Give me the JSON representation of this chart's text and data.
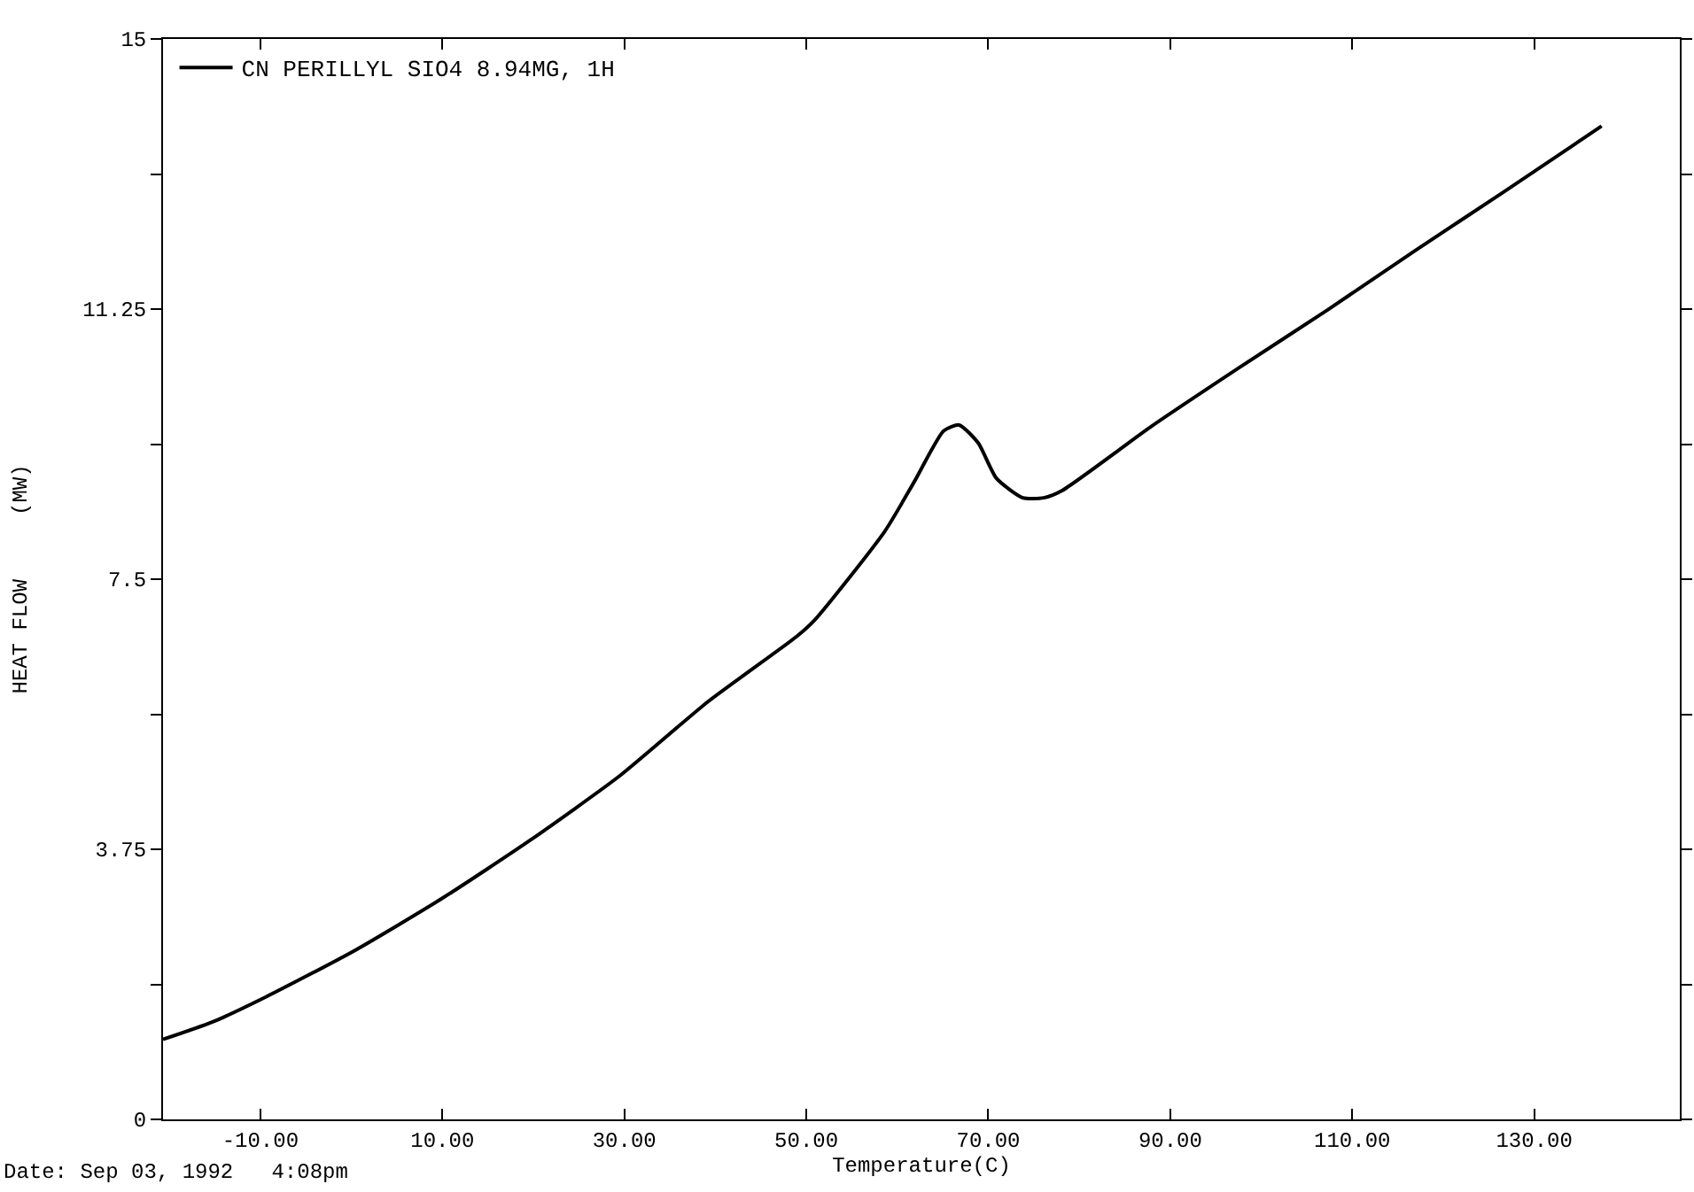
{
  "chart_data": {
    "type": "line",
    "xlabel": "Temperature(C)",
    "ylabel": "HEAT FLOW     (MW)",
    "x": [
      -20.7,
      -15.3,
      -9.4,
      0.3,
      10,
      19.7,
      29.5,
      39.2,
      48.9,
      50.9,
      58.6,
      61.9,
      65.1,
      66.8,
      68.9,
      70.9,
      73.8,
      76.1,
      78.1,
      87.8,
      97.5,
      107.3,
      117,
      126.7,
      137.4
    ],
    "series": [
      {
        "name": "CN PERILLYL SIO4 8.94MG, 1H",
        "color": "#000000",
        "values": [
          1.11,
          1.35,
          1.7,
          2.34,
          3.07,
          3.88,
          4.77,
          5.8,
          6.7,
          6.93,
          8.16,
          8.86,
          9.56,
          9.64,
          9.39,
          8.9,
          8.63,
          8.63,
          8.73,
          9.61,
          10.43,
          11.24,
          12.07,
          12.88,
          13.79
        ]
      }
    ],
    "xlim": [
      -20.7,
      146
    ],
    "xticks": [
      {
        "value": -10,
        "label": "-10.00"
      },
      {
        "value": 10,
        "label": "10.00"
      },
      {
        "value": 30,
        "label": "30.00"
      },
      {
        "value": 50,
        "label": "50.00"
      },
      {
        "value": 70,
        "label": "70.00"
      },
      {
        "value": 90,
        "label": "90.00"
      },
      {
        "value": 110,
        "label": "110.00"
      },
      {
        "value": 130,
        "label": "130.00"
      }
    ],
    "ylim": [
      0,
      15
    ],
    "yticks": [
      0,
      {
        "value": 1.875,
        "label": null
      },
      3.75,
      {
        "value": 5.625,
        "label": null
      },
      7.5,
      {
        "value": 9.375,
        "label": null
      },
      11.25,
      {
        "value": 13.125,
        "label": null
      },
      15
    ],
    "legend": "top left",
    "marker": "none",
    "line_style": "solid",
    "grid": false,
    "annotations": [
      "Date: Sep 03, 1992   4:08pm"
    ]
  }
}
